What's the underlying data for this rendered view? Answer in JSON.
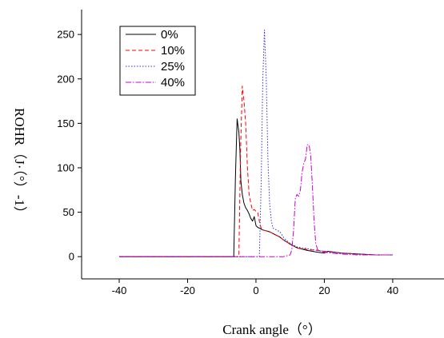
{
  "chart_data": {
    "type": "line",
    "title": "",
    "xlabel": "Crank angle（°）",
    "ylabel": "ROHR（J·（°）-1）",
    "xlim": [
      -51,
      55
    ],
    "ylim": [
      -25,
      278
    ],
    "x_ticks": [
      -40,
      -20,
      0,
      20,
      40
    ],
    "y_ticks": [
      0,
      50,
      100,
      150,
      200,
      250
    ],
    "grid": false,
    "legend_position": "top-left",
    "series": [
      {
        "name": "0%",
        "color": "#000000",
        "dash": "solid",
        "x": [
          -40,
          -10,
          -6.5,
          -6.0,
          -5.5,
          -5.0,
          -4.7,
          -4.4,
          -4.0,
          -3.5,
          -3.0,
          -2.5,
          -2.0,
          -1.5,
          -1.0,
          -0.5,
          0,
          0.5,
          1,
          2,
          3,
          4,
          5,
          6,
          7,
          8,
          10,
          12,
          15,
          18,
          20,
          21,
          23,
          25,
          30,
          35,
          40
        ],
        "y": [
          0,
          0,
          0,
          90,
          155,
          140,
          120,
          85,
          70,
          60,
          55,
          52,
          48,
          43,
          40,
          45,
          35,
          33,
          32,
          30,
          29,
          28,
          26,
          24,
          22,
          19,
          14,
          10,
          7,
          5,
          4,
          6,
          5,
          4,
          3,
          2,
          2
        ]
      },
      {
        "name": "10%",
        "color": "#ff0000",
        "dash": "5,3",
        "x": [
          -40,
          -10,
          -5.0,
          -4.5,
          -4.0,
          -3.5,
          -3.0,
          -2.5,
          -2.0,
          -1.5,
          -1.0,
          -0.5,
          0,
          0.5,
          1,
          1.5,
          2,
          3,
          4,
          5,
          6,
          7,
          8,
          10,
          12,
          15,
          18,
          20,
          22,
          25,
          30,
          35,
          40
        ],
        "y": [
          0,
          0,
          0,
          120,
          192,
          175,
          150,
          100,
          70,
          60,
          52,
          53,
          51,
          50,
          40,
          32,
          30,
          29,
          28,
          26,
          24,
          22,
          19,
          14,
          10,
          8,
          7,
          6,
          5,
          4,
          3,
          2,
          2
        ]
      },
      {
        "name": "25%",
        "color": "#3333cc",
        "dash": "1.5,2",
        "x": [
          -40,
          0,
          1.0,
          1.5,
          2.0,
          2.5,
          3.0,
          3.5,
          4.0,
          4.5,
          5,
          6,
          7,
          8,
          9,
          10,
          12,
          15,
          18,
          20,
          25,
          30,
          35,
          40
        ],
        "y": [
          0,
          0,
          0,
          80,
          200,
          255,
          200,
          110,
          60,
          40,
          32,
          30,
          28,
          22,
          18,
          15,
          11,
          9,
          7,
          6,
          4,
          3,
          2,
          2
        ]
      },
      {
        "name": "40%",
        "color": "#cc00cc",
        "dash": "7,2,1.5,2",
        "x": [
          -40,
          8,
          10,
          10.5,
          11,
          11.5,
          12,
          12.5,
          13,
          13.5,
          14,
          14.5,
          15,
          15.5,
          16,
          16.5,
          17,
          17.5,
          18,
          19,
          20,
          22,
          25,
          30,
          35,
          40
        ],
        "y": [
          0,
          0,
          2,
          8,
          30,
          65,
          70,
          68,
          75,
          95,
          105,
          110,
          126,
          126,
          115,
          80,
          40,
          15,
          8,
          6,
          5,
          4,
          3,
          2,
          2,
          2
        ]
      }
    ]
  }
}
